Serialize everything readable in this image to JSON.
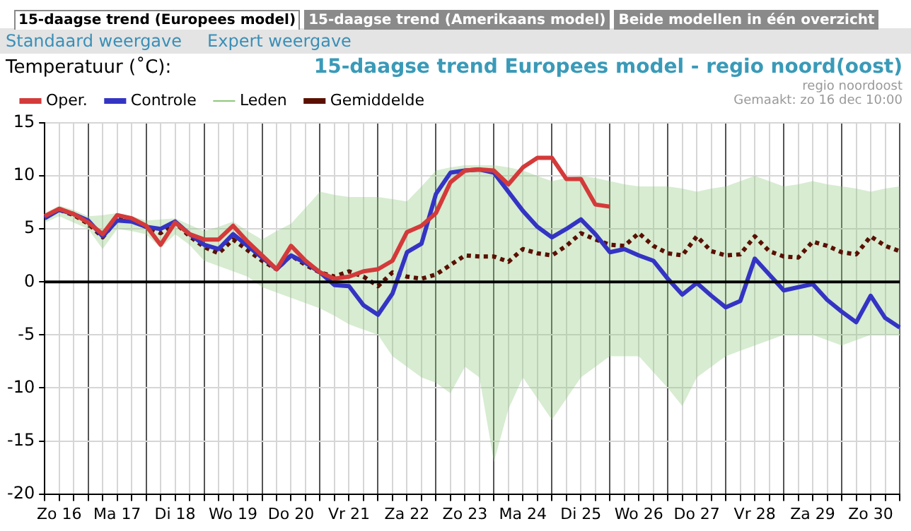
{
  "chart_data": {
    "type": "line",
    "title": "15-daagse trend Europees model - regio noord(oost)",
    "ylabel": "Temperatuur (˚C):",
    "annotations": [
      "15-daagse trend (Europees model)",
      "15-daagse trend (Amerikaans model)",
      "Beide modellen in één overzicht",
      "Standaard weergave",
      "Expert weergave",
      "regio noordoost",
      "Gemaakt: zo 16 dec 10:00"
    ],
    "categories": [
      null,
      "Zo 16",
      null,
      null,
      null,
      "Ma 17",
      null,
      null,
      null,
      "Di 18",
      null,
      null,
      null,
      "Wo 19",
      null,
      null,
      null,
      "Do 20",
      null,
      null,
      null,
      "Vr 21",
      null,
      null,
      null,
      "Za 22",
      null,
      null,
      null,
      "Zo 23",
      null,
      null,
      null,
      "Ma 24",
      null,
      null,
      null,
      "Di 25",
      null,
      null,
      null,
      "Wo 26",
      null,
      null,
      null,
      "Do 27",
      null,
      null,
      null,
      "Vr 28",
      null,
      null,
      null,
      "Za 29",
      null,
      null,
      null,
      "Zo 30",
      null,
      null
    ],
    "series": [
      {
        "name": "Oper.",
        "color": "#d43a3a",
        "values": [
          6.2,
          6.9,
          6.4,
          5.6,
          4.5,
          6.3,
          6.0,
          5.3,
          3.5,
          5.6,
          4.5,
          4.0,
          4.0,
          5.3,
          3.8,
          2.5,
          1.2,
          3.4,
          2.0,
          0.9,
          0.3,
          0.5,
          1.0,
          1.2,
          2.0,
          4.7,
          5.3,
          6.5,
          9.4,
          10.5,
          10.6,
          10.5,
          9.2,
          10.8,
          11.7,
          11.7,
          9.7,
          9.7,
          7.3,
          7.1,
          null,
          null,
          null,
          null,
          null,
          null,
          null,
          null,
          null,
          null,
          null,
          null,
          null,
          null,
          null,
          null,
          null,
          null,
          null,
          null
        ]
      },
      {
        "name": "Controle",
        "color": "#3434c4",
        "values": [
          6.0,
          6.8,
          6.4,
          5.8,
          4.3,
          5.8,
          5.7,
          5.2,
          5.0,
          5.7,
          4.5,
          3.5,
          3.1,
          4.5,
          3.4,
          2.3,
          1.2,
          2.5,
          1.8,
          0.9,
          -0.3,
          -0.4,
          -2.2,
          -3.1,
          -1.1,
          2.8,
          3.6,
          8.3,
          10.3,
          10.5,
          10.6,
          10.3,
          8.5,
          6.7,
          5.2,
          4.2,
          5.0,
          5.9,
          4.5,
          2.8,
          3.1,
          2.5,
          2.0,
          0.3,
          -1.2,
          -0.1,
          -1.3,
          -2.4,
          -1.8,
          2.2,
          0.7,
          -0.8,
          -0.5,
          -0.2,
          -1.7,
          -2.8,
          -3.8,
          -1.3,
          -3.4,
          -4.3
        ]
      },
      {
        "name": "Leden",
        "color": "#8cc87a",
        "values": [
          null,
          null,
          null,
          null,
          null,
          null,
          null,
          null,
          null,
          null,
          null,
          null,
          null,
          null,
          null,
          null,
          null,
          null,
          null,
          null,
          null,
          null,
          null,
          null,
          null,
          null,
          null,
          null,
          null,
          null,
          null,
          null,
          null,
          null,
          null,
          null,
          null,
          null,
          null,
          null,
          null,
          null,
          null,
          null,
          null,
          null,
          null,
          null,
          null,
          null,
          null,
          null,
          null,
          null,
          null,
          null,
          null,
          null,
          null,
          null
        ],
        "upper": [
          6.5,
          7.2,
          6.8,
          6.2,
          6.3,
          6.5,
          6.2,
          5.8,
          5.9,
          6.0,
          5.4,
          4.8,
          5.2,
          5.7,
          4.8,
          4.0,
          4.8,
          5.5,
          7.0,
          8.5,
          8.2,
          8.0,
          8.0,
          8.0,
          7.8,
          7.6,
          9.0,
          10.5,
          10.8,
          11.0,
          11.0,
          11.0,
          10.8,
          10.5,
          10.0,
          9.5,
          9.8,
          10.0,
          9.8,
          9.5,
          9.2,
          9.0,
          9.0,
          9.0,
          8.8,
          8.5,
          8.8,
          9.0,
          9.5,
          10.0,
          9.5,
          9.0,
          9.2,
          9.5,
          9.2,
          9.0,
          8.8,
          8.5,
          8.8,
          9.0
        ],
        "lower": [
          5.6,
          6.2,
          5.6,
          5.0,
          3.1,
          5.0,
          4.8,
          4.5,
          3.2,
          4.5,
          3.5,
          2.0,
          1.5,
          1.0,
          0.5,
          -0.5,
          -1.0,
          -1.5,
          -2.0,
          -2.5,
          -3.2,
          -4.0,
          -4.5,
          -5.0,
          -7.0,
          -8.0,
          -9.0,
          -9.5,
          -10.5,
          -8.0,
          -9.0,
          -17.0,
          -12.0,
          -9.0,
          -11.0,
          -13.0,
          -11.0,
          -9.0,
          -8.0,
          -7.0,
          -7.0,
          -7.0,
          -8.5,
          -10.0,
          -11.7,
          -9.0,
          -8.0,
          -7.0,
          -6.5,
          -6.0,
          -5.5,
          -5.0,
          -5.0,
          -5.0,
          -5.5,
          -6.0,
          -5.5,
          -5.0,
          -5.0,
          -5.0
        ]
      },
      {
        "name": "Gemiddelde",
        "color": "#5a1000",
        "line_style": "dotted",
        "values": [
          6.1,
          6.8,
          6.3,
          5.5,
          4.2,
          5.9,
          5.8,
          5.2,
          4.6,
          5.6,
          4.3,
          3.3,
          2.7,
          4.0,
          3.0,
          2.0,
          1.2,
          2.5,
          1.6,
          0.9,
          0.5,
          1.0,
          0.5,
          -0.4,
          0.9,
          0.5,
          0.3,
          0.7,
          1.6,
          2.5,
          2.4,
          2.4,
          1.9,
          3.1,
          2.7,
          2.5,
          3.4,
          4.6,
          4.0,
          3.5,
          3.4,
          4.6,
          3.4,
          2.7,
          2.5,
          4.3,
          2.9,
          2.5,
          2.6,
          4.3,
          2.9,
          2.4,
          2.3,
          3.8,
          3.4,
          2.8,
          2.6,
          4.3,
          3.4,
          2.9
        ]
      }
    ],
    "ylim": [
      -20,
      15
    ],
    "yticks": [
      -20,
      -15,
      -10,
      -5,
      0,
      5,
      10,
      15
    ],
    "ref_lines": [
      {
        "axis": "y",
        "value": 0,
        "color": "#000000"
      }
    ],
    "grid": true,
    "legend": "top left"
  }
}
